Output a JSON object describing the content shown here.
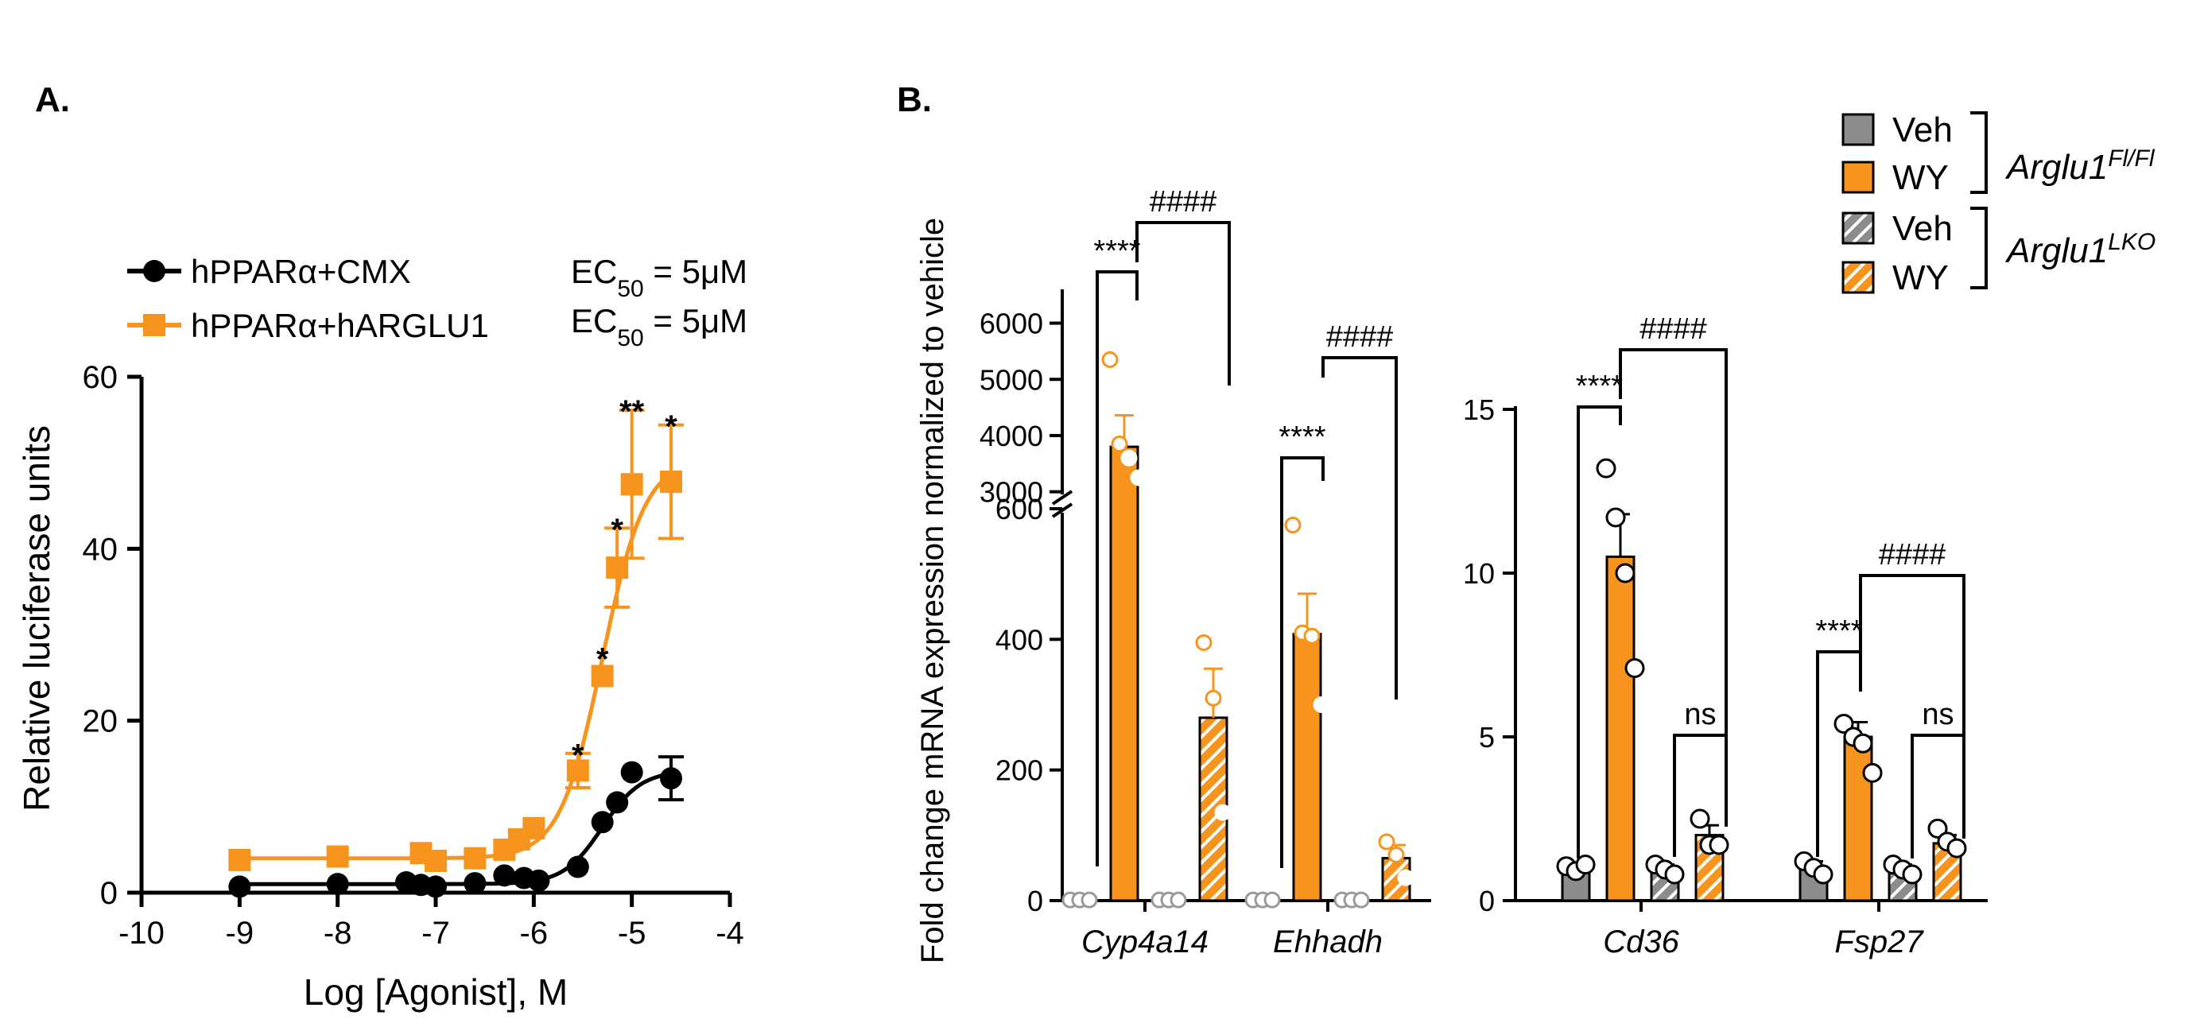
{
  "colors": {
    "agonist": "#F7941D",
    "control": "#000000",
    "veh": "#8C8C8C",
    "point_fill": "#ffffff"
  },
  "chart_data": [
    {
      "panel": "A.",
      "type": "scatter",
      "xlabel": "Log [Agonist], M",
      "ylabel": "Relative luciferase units",
      "xlim": [
        -10,
        -4
      ],
      "ylim": [
        0,
        60
      ],
      "xticks": [
        -10,
        -9,
        -8,
        -7,
        -6,
        -5,
        -4
      ],
      "yticks": [
        0,
        20,
        40,
        60
      ],
      "legend_position": "top-left",
      "ec50": [
        {
          "prefix": "EC",
          "sub": "50",
          "suffix": " = 5μM"
        },
        {
          "prefix": "EC",
          "sub": "50",
          "suffix": " = 5μM"
        }
      ],
      "series": [
        {
          "name": "hPPARα+CMX",
          "marker": "circle",
          "color": "#000000",
          "x": [
            -9.0,
            -8.0,
            -7.3,
            -7.15,
            -7.0,
            -6.6,
            -6.3,
            -6.1,
            -5.95,
            -5.55,
            -5.3,
            -5.15,
            -5.0,
            -4.6
          ],
          "y": [
            0.7,
            1.0,
            1.2,
            0.9,
            0.7,
            1.1,
            2.0,
            1.7,
            1.4,
            3.0,
            8.2,
            10.5,
            14.0,
            13.3
          ],
          "err": [
            0,
            0,
            0,
            0,
            0,
            0,
            0,
            0,
            0,
            0,
            0,
            0,
            0,
            2.5
          ],
          "fit": {
            "bottom": 1.0,
            "top": 14.2,
            "logec50": -5.3,
            "hill": 2.2
          },
          "stars": []
        },
        {
          "name": "hPPARα+hARGLU1",
          "marker": "square",
          "color": "#F7941D",
          "x": [
            -9.0,
            -8.0,
            -7.15,
            -7.0,
            -6.6,
            -6.3,
            -6.15,
            -6.0,
            -5.55,
            -5.3,
            -5.15,
            -5.0,
            -4.6
          ],
          "y": [
            3.8,
            4.2,
            4.6,
            3.7,
            4.0,
            5.0,
            6.2,
            7.5,
            14.2,
            25.2,
            37.8,
            47.5,
            47.8
          ],
          "err": [
            0,
            0,
            0,
            0,
            0,
            0,
            0,
            0,
            2.0,
            0,
            4.6,
            8.6,
            6.6
          ],
          "fit": {
            "bottom": 4.0,
            "top": 50.5,
            "logec50": -5.3,
            "hill": 2.0
          },
          "stars": [
            {
              "x": -5.55,
              "text": "*",
              "y": 16.6
            },
            {
              "x": -5.3,
              "text": "*",
              "y": 27.8
            },
            {
              "x": -5.15,
              "text": "*",
              "y": 42.8
            },
            {
              "x": -5.0,
              "text": "**",
              "y": 56.6
            },
            {
              "x": -4.6,
              "text": "*",
              "y": 54.8
            }
          ]
        }
      ]
    },
    {
      "panel": "B.",
      "type": "bar",
      "ylabel": "Fold change mRNA expression normalized to vehicle",
      "axis_break": {
        "lower": [
          0,
          600
        ],
        "upper": [
          2500,
          6000
        ]
      },
      "yticks": [
        0,
        200,
        400,
        600,
        3000,
        4000,
        5000,
        6000
      ],
      "categories": [
        "Cyp4a14",
        "Ehhadh"
      ],
      "groups": [
        {
          "label": "Cyp4a14",
          "bars": [
            {
              "name": "Veh Arglu1Fl/Fl",
              "value": 1,
              "err": 0,
              "points": [
                1,
                1,
                1
              ]
            },
            {
              "name": "WY Arglu1Fl/Fl",
              "value": 3800,
              "err": 560,
              "points": [
                5350,
                3850,
                3600,
                3250
              ]
            },
            {
              "name": "Veh Arglu1LKO",
              "value": 1,
              "err": 0,
              "points": [
                1,
                1,
                1
              ]
            },
            {
              "name": "WY Arglu1LKO",
              "value": 280,
              "err": 75,
              "points": [
                395,
                310,
                135
              ]
            }
          ],
          "sig_wy": "****",
          "sig_lko": "####"
        },
        {
          "label": "Ehhadh",
          "bars": [
            {
              "name": "Veh Arglu1Fl/Fl",
              "value": 1,
              "err": 0,
              "points": [
                1,
                1,
                1
              ]
            },
            {
              "name": "WY Arglu1Fl/Fl",
              "value": 408,
              "err": 62,
              "points": [
                575,
                410,
                405,
                300
              ]
            },
            {
              "name": "Veh Arglu1LKO",
              "value": 1,
              "err": 0,
              "points": [
                1,
                1,
                1
              ]
            },
            {
              "name": "WY Arglu1LKO",
              "value": 65,
              "err": 20,
              "points": [
                90,
                70,
                35
              ]
            }
          ],
          "sig_wy": "****",
          "sig_lko": "####"
        }
      ]
    },
    {
      "panel": "B.",
      "type": "bar",
      "ylim": [
        0,
        15
      ],
      "yticks": [
        0,
        5,
        10,
        15
      ],
      "categories": [
        "Cd36",
        "Fsp27"
      ],
      "groups": [
        {
          "label": "Cd36",
          "bars": [
            {
              "name": "Veh Arglu1Fl/Fl",
              "value": 1.0,
              "err": 0.15,
              "points": [
                1.05,
                0.9,
                1.1
              ]
            },
            {
              "name": "WY Arglu1Fl/Fl",
              "value": 10.5,
              "err": 1.3,
              "points": [
                13.2,
                11.7,
                10.0,
                7.1
              ]
            },
            {
              "name": "Veh Arglu1LKO",
              "value": 0.95,
              "err": 0.15,
              "points": [
                1.1,
                0.95,
                0.8
              ]
            },
            {
              "name": "WY Arglu1LKO",
              "value": 2.0,
              "err": 0.3,
              "points": [
                2.5,
                1.7,
                1.7
              ]
            }
          ],
          "sig_wy": "****",
          "sig_lko": "####",
          "sig_ko": "ns"
        },
        {
          "label": "Fsp27",
          "bars": [
            {
              "name": "Veh Arglu1Fl/Fl",
              "value": 1.0,
              "err": 0.2,
              "points": [
                1.2,
                1.0,
                0.8
              ]
            },
            {
              "name": "WY Arglu1Fl/Fl",
              "value": 5.0,
              "err": 0.45,
              "points": [
                5.4,
                5.0,
                4.8,
                3.9
              ]
            },
            {
              "name": "Veh Arglu1LKO",
              "value": 0.95,
              "err": 0.15,
              "points": [
                1.1,
                0.95,
                0.8
              ]
            },
            {
              "name": "WY Arglu1LKO",
              "value": 1.75,
              "err": 0.25,
              "points": [
                2.2,
                1.8,
                1.6
              ]
            }
          ],
          "sig_wy": "****",
          "sig_lko": "####",
          "sig_ko": "ns"
        }
      ]
    }
  ],
  "legend_b": {
    "items": [
      {
        "label": "Veh",
        "fill": "solid-grey"
      },
      {
        "label": "WY",
        "fill": "solid-orange"
      },
      {
        "label": "Veh",
        "fill": "hatched-grey"
      },
      {
        "label": "WY",
        "fill": "hatched-orange"
      }
    ],
    "genotypes": [
      {
        "base": "Arglu1",
        "sup": "Fl/Fl"
      },
      {
        "base": "Arglu1",
        "sup": "LKO"
      }
    ]
  }
}
